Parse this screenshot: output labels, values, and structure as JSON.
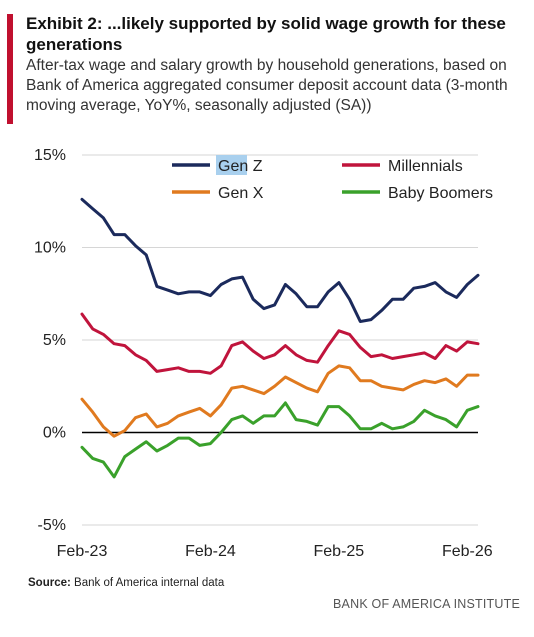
{
  "header": {
    "title": "Exhibit 2: ...likely supported by solid wage growth for these generations",
    "subtitle": "After-tax wage and salary growth by household generations, based on Bank of America aggregated consumer deposit account data (3-month moving average, YoY%, seasonally adjusted (SA))"
  },
  "footer": {
    "source_label": "Source:",
    "source_text": "Bank of America internal data",
    "brand": "BANK OF AMERICA INSTITUTE"
  },
  "colors": {
    "accent": "#c0102f",
    "gen_z": "#1b2a5c",
    "millennials": "#c0143c",
    "gen_x": "#e07a1f",
    "baby_boomers": "#3aa12b",
    "legend_highlight": "#a9d0ee"
  },
  "chart_data": {
    "type": "line",
    "title": "",
    "xlabel": "",
    "ylabel": "",
    "ylim": [
      -5,
      15
    ],
    "yticks": [
      15,
      10,
      5,
      0,
      -5
    ],
    "ytick_labels": [
      "15%",
      "10%",
      "5%",
      "0%",
      "-5%"
    ],
    "xtick_labels": [
      "Feb-23",
      "Feb-24",
      "Feb-25",
      "Feb-26"
    ],
    "x_months_from_first": [
      0,
      12,
      24,
      36
    ],
    "grid": true,
    "legend": "top",
    "legend_highlighted_entry": "Gen Z",
    "series": [
      {
        "name": "Gen Z",
        "color": "#1b2a5c",
        "values": [
          12.6,
          12.1,
          11.6,
          10.7,
          10.7,
          10.1,
          9.6,
          7.9,
          7.7,
          7.5,
          7.6,
          7.6,
          7.4,
          8.0,
          8.3,
          8.4,
          7.2,
          6.7,
          6.9,
          8.0,
          7.5,
          6.8,
          6.8,
          7.6,
          8.1,
          7.2,
          6.0,
          6.1,
          6.6,
          7.2,
          7.2,
          7.8,
          7.9,
          8.1,
          7.6,
          7.3,
          8.0,
          8.5
        ]
      },
      {
        "name": "Millennials",
        "color": "#c0143c",
        "values": [
          6.4,
          5.6,
          5.3,
          4.8,
          4.7,
          4.2,
          3.9,
          3.3,
          3.4,
          3.5,
          3.3,
          3.3,
          3.2,
          3.6,
          4.7,
          4.9,
          4.4,
          4.0,
          4.2,
          4.7,
          4.2,
          3.9,
          3.8,
          4.7,
          5.5,
          5.3,
          4.6,
          4.1,
          4.2,
          4.0,
          4.1,
          4.2,
          4.3,
          4.0,
          4.7,
          4.4,
          4.9,
          4.8
        ]
      },
      {
        "name": "Gen X",
        "color": "#e07a1f",
        "values": [
          1.8,
          1.1,
          0.3,
          -0.2,
          0.1,
          0.8,
          1.0,
          0.3,
          0.5,
          0.9,
          1.1,
          1.3,
          0.9,
          1.5,
          2.4,
          2.5,
          2.3,
          2.1,
          2.5,
          3.0,
          2.7,
          2.4,
          2.2,
          3.2,
          3.6,
          3.5,
          2.8,
          2.8,
          2.5,
          2.4,
          2.3,
          2.6,
          2.8,
          2.7,
          2.9,
          2.5,
          3.1,
          3.1
        ]
      },
      {
        "name": "Baby Boomers",
        "color": "#3aa12b",
        "values": [
          -0.8,
          -1.4,
          -1.6,
          -2.4,
          -1.3,
          -0.9,
          -0.5,
          -1.0,
          -0.7,
          -0.3,
          -0.3,
          -0.7,
          -0.6,
          0.0,
          0.7,
          0.9,
          0.5,
          0.9,
          0.9,
          1.6,
          0.7,
          0.6,
          0.4,
          1.4,
          1.4,
          0.9,
          0.2,
          0.2,
          0.5,
          0.2,
          0.3,
          0.6,
          1.2,
          0.9,
          0.7,
          0.3,
          1.2,
          1.4
        ]
      }
    ]
  }
}
